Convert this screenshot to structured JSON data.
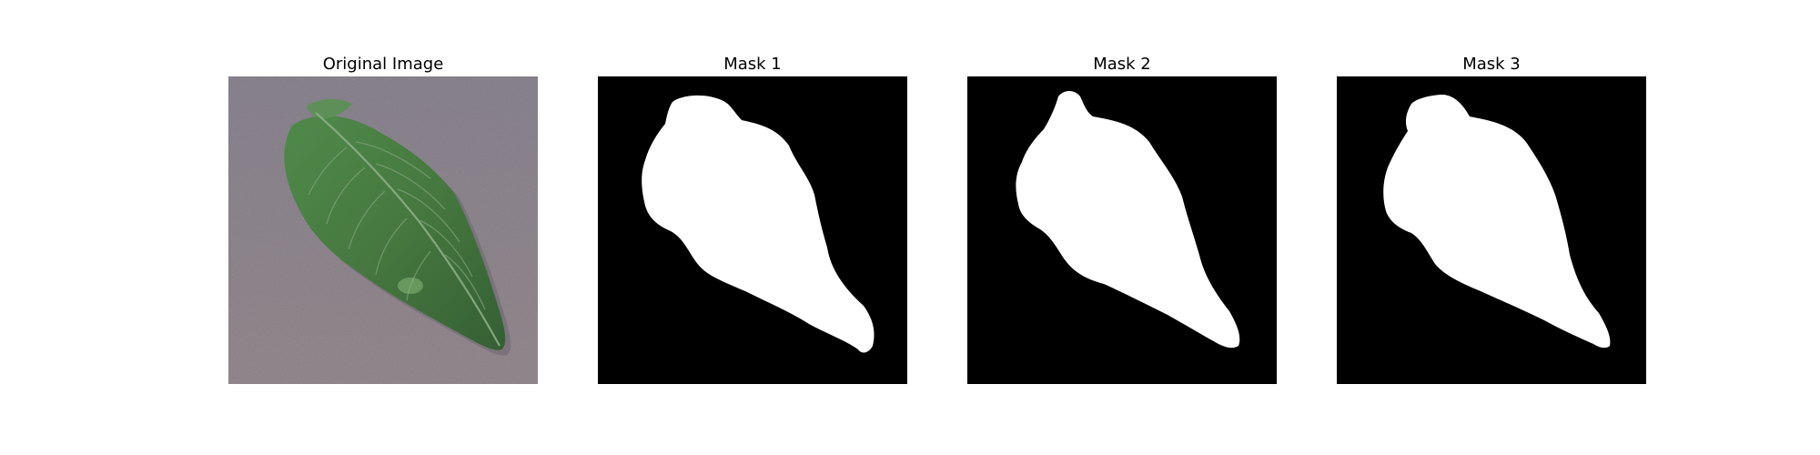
{
  "figure": {
    "panels": [
      {
        "title": "Original Image",
        "kind": "photo"
      },
      {
        "title": "Mask 1",
        "kind": "mask"
      },
      {
        "title": "Mask 2",
        "kind": "mask"
      },
      {
        "title": "Mask 3",
        "kind": "mask"
      }
    ],
    "colors": {
      "background": "#ffffff",
      "mask_background": "#000000",
      "mask_foreground": "#ffffff",
      "ground": "#8a8490",
      "leaf_dark": "#3f6b3c",
      "leaf_mid": "#4f7f49",
      "leaf_light": "#6b9a63",
      "vein": "#8fb08a"
    }
  }
}
